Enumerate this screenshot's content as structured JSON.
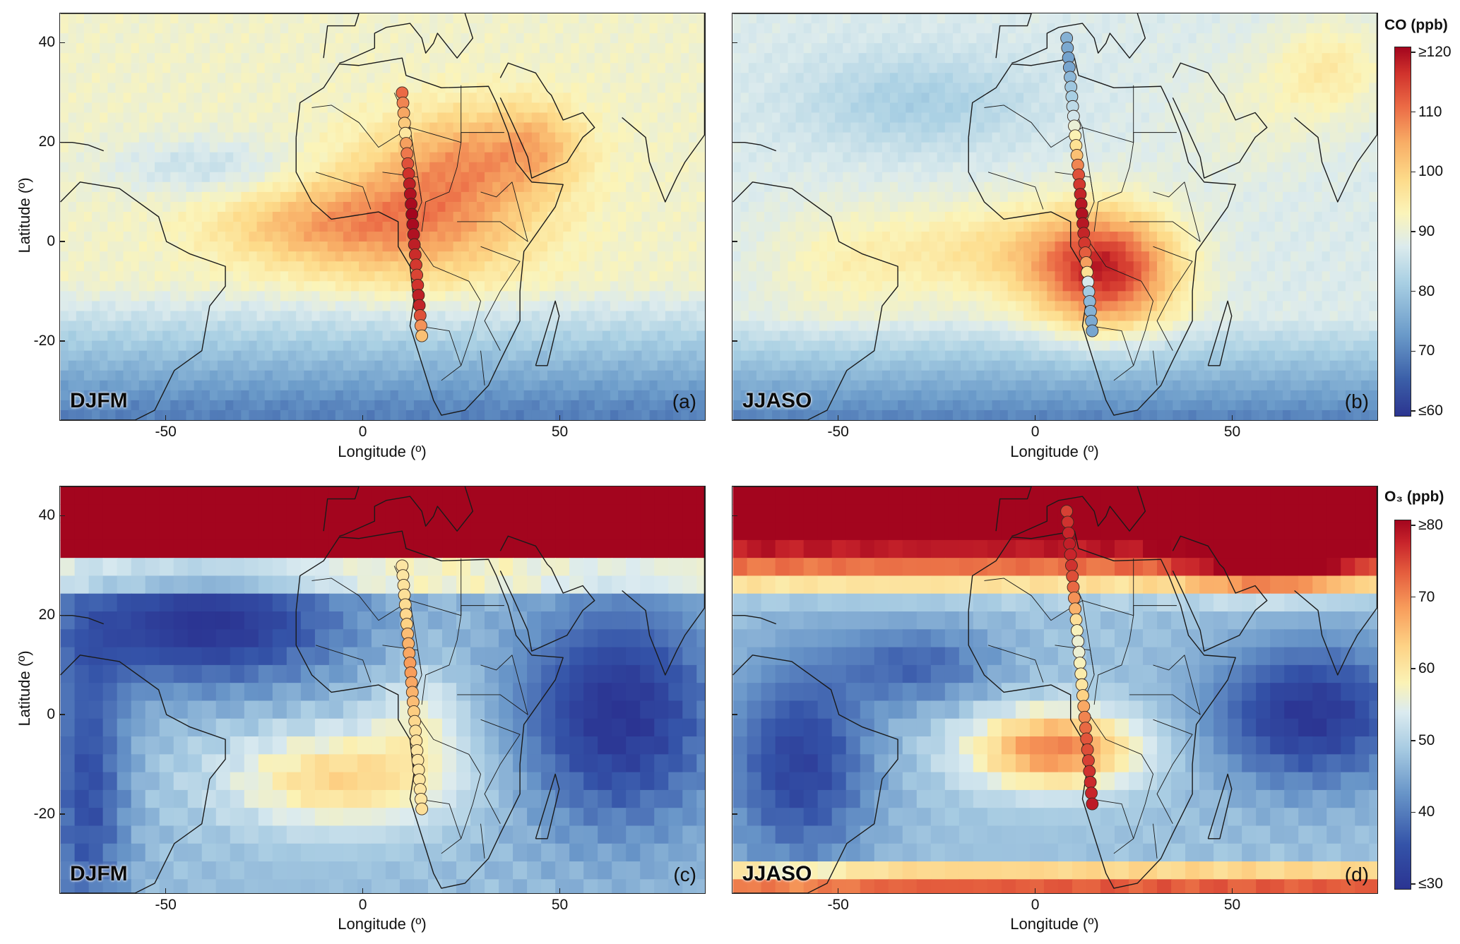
{
  "panels": [
    {
      "id": "a",
      "season": "DJFM",
      "label": "(a)",
      "variable": "CO",
      "track": [
        0.84,
        0.8,
        0.75,
        0.68,
        0.6,
        0.76,
        0.82,
        0.88,
        0.93,
        0.96,
        0.98,
        0.99,
        1.0,
        0.99,
        0.98,
        0.96,
        0.94,
        0.92,
        0.9,
        0.93,
        0.96,
        0.95,
        0.88,
        0.78,
        0.7
      ]
    },
    {
      "id": "b",
      "season": "JJASO",
      "label": "(b)",
      "variable": "CO",
      "track": [
        0.28,
        0.26,
        0.24,
        0.25,
        0.3,
        0.34,
        0.36,
        0.4,
        0.44,
        0.5,
        0.56,
        0.62,
        0.7,
        0.8,
        0.88,
        0.92,
        0.95,
        0.97,
        0.98,
        0.97,
        0.95,
        0.92,
        0.86,
        0.76,
        0.62,
        0.45,
        0.35,
        0.3,
        0.28,
        0.26,
        0.25
      ]
    },
    {
      "id": "c",
      "season": "DJFM",
      "label": "(c)",
      "variable": "O3",
      "track": [
        0.6,
        0.6,
        0.61,
        0.62,
        0.63,
        0.64,
        0.66,
        0.7,
        0.72,
        0.74,
        0.76,
        0.76,
        0.74,
        0.72,
        0.7,
        0.67,
        0.64,
        0.62,
        0.61,
        0.6,
        0.6,
        0.6,
        0.6,
        0.6,
        0.6,
        0.62
      ]
    },
    {
      "id": "d",
      "season": "JJASO",
      "label": "(d)",
      "variable": "O3",
      "track": [
        0.9,
        0.92,
        0.94,
        0.95,
        0.94,
        0.92,
        0.88,
        0.84,
        0.78,
        0.72,
        0.62,
        0.55,
        0.52,
        0.52,
        0.55,
        0.58,
        0.6,
        0.66,
        0.74,
        0.8,
        0.84,
        0.87,
        0.88,
        0.9,
        0.92,
        0.93,
        0.94,
        0.96
      ]
    }
  ],
  "axes": {
    "xlabel": "Longitude (º)",
    "ylabel": "Latitude (º)",
    "xticks": [
      "-50",
      "0",
      "50"
    ],
    "yticks": [
      "40",
      "20",
      "0",
      "-20"
    ]
  },
  "colorbars": [
    {
      "title": "CO (ppb)",
      "ticks": [
        "≥120",
        "110",
        "100",
        "90",
        "80",
        "70",
        "≤60"
      ]
    },
    {
      "title": "O₃ (ppb)",
      "ticks": [
        "≥80",
        "70",
        "60",
        "50",
        "40",
        "≤30"
      ]
    }
  ]
}
